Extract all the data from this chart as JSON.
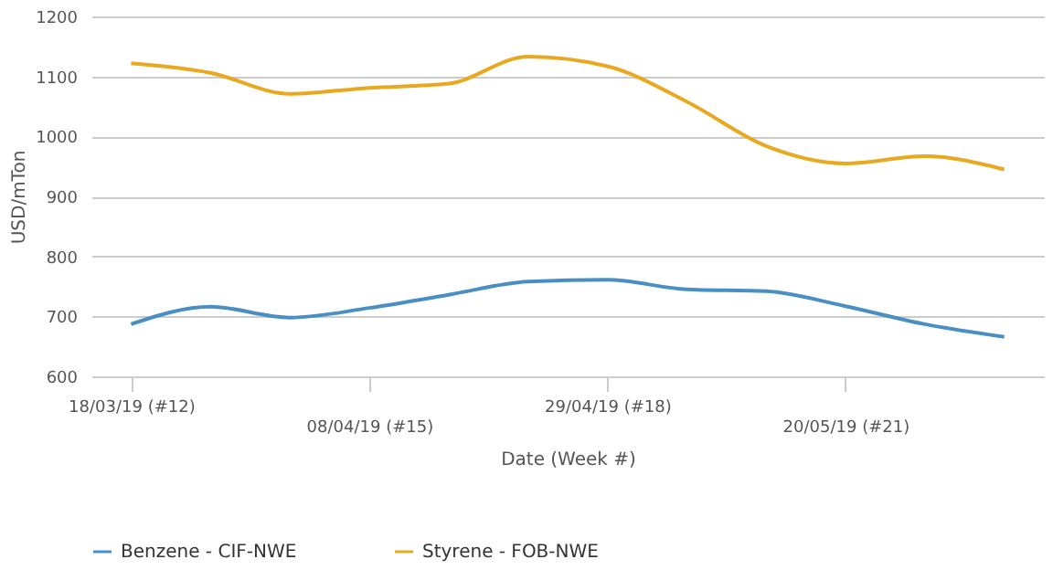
{
  "chart_data": {
    "type": "line",
    "xlabel": "Date (Week #)",
    "ylabel": "USD/mTon",
    "categories": [
      "18/03/19 (#12)",
      null,
      null,
      "08/04/19 (#15)",
      null,
      null,
      "29/04/19 (#18)",
      null,
      null,
      "20/05/19 (#21)",
      null,
      null
    ],
    "series": [
      {
        "name": "Benzene - CIF-NWE",
        "color": "#4a8fc4",
        "values": [
          687,
          716,
          698,
          714,
          736,
          758,
          761,
          745,
          742,
          717,
          687,
          666
        ]
      },
      {
        "name": "Styrene - FOB-NWE",
        "color": "#e8a820",
        "values": [
          1122,
          1106,
          1071,
          1081,
          1088,
          1133,
          1117,
          1058,
          984,
          955,
          967,
          945
        ]
      }
    ],
    "ylim": [
      600,
      1200
    ],
    "yticks": [
      600,
      700,
      800,
      900,
      1000,
      1100,
      1200
    ],
    "grid": "y",
    "legend": "bottom",
    "marker": "none",
    "line_style": "solid"
  }
}
